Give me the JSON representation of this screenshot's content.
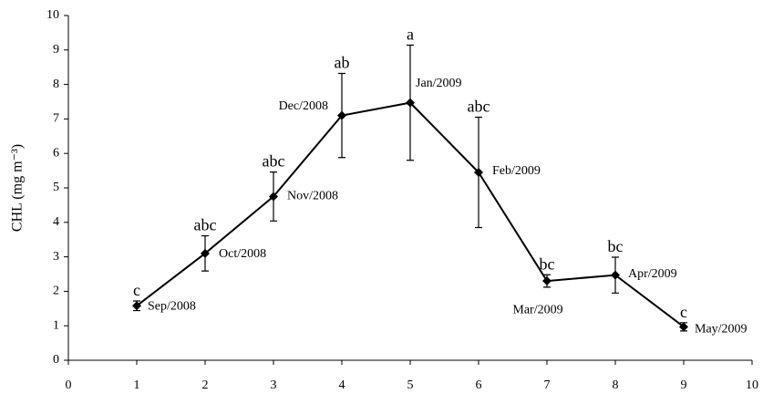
{
  "chart_data": {
    "type": "line",
    "y_label": "CHL (mg m⁻³)",
    "x": [
      1,
      2,
      3,
      4,
      5,
      6,
      7,
      8,
      9
    ],
    "series": [
      {
        "color": "#000000",
        "values": [
          1.58,
          3.1,
          4.75,
          7.1,
          7.47,
          5.45,
          2.3,
          2.47,
          0.97
        ],
        "errors": [
          0.14,
          0.51,
          0.71,
          1.22,
          1.67,
          1.6,
          0.18,
          0.52,
          0.12
        ],
        "point_labels": [
          "Sep/2008",
          "Oct/2008",
          "Nov/2008",
          "Dec/2008",
          "Jan/2009",
          "Feb/2009",
          "Mar/2009",
          "Apr/2009",
          "May/2009"
        ],
        "letters": [
          "c",
          "abc",
          "abc",
          "ab",
          "a",
          "abc",
          "bc",
          "bc",
          "c"
        ]
      }
    ],
    "xlim": [
      0,
      10
    ],
    "xticks": [
      0,
      1,
      2,
      3,
      4,
      5,
      6,
      7,
      8,
      9,
      10
    ],
    "ylim": [
      0,
      10
    ],
    "yticks": [
      0,
      1,
      2,
      3,
      4,
      5,
      6,
      7,
      8,
      9,
      10
    ]
  }
}
